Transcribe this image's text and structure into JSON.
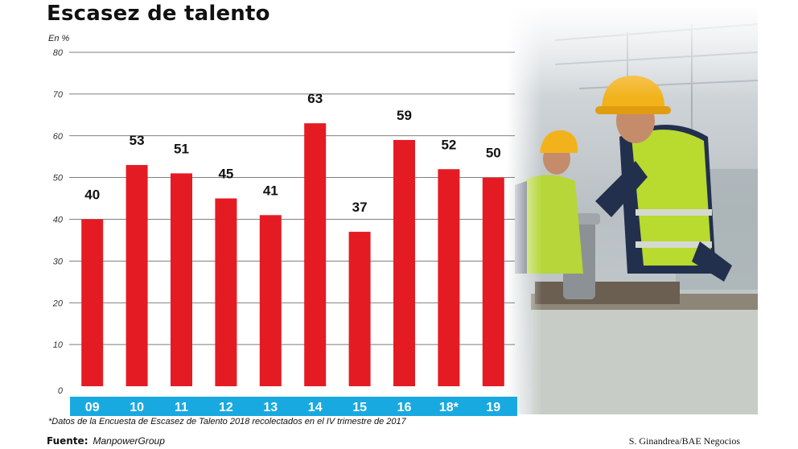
{
  "title": "Escasez de talento",
  "unit_label": "En %",
  "footnote": "*Datos de la Encuesta de Escasez de Talento 2018 recolectados en el IV trimestre de 2017",
  "source": {
    "label": "Fuente:",
    "value": "ManpowerGroup"
  },
  "credit": "S. Ginandrea/BAE Negocios",
  "colors": {
    "bar": "#e51b24",
    "axis_band": "#19a9e1",
    "axis_text": "#ffffff",
    "grid": "#555555"
  },
  "chart_data": {
    "type": "bar",
    "categories": [
      "09",
      "10",
      "11",
      "12",
      "13",
      "14",
      "15",
      "16",
      "18*",
      "19"
    ],
    "values": [
      40,
      53,
      51,
      45,
      41,
      63,
      37,
      59,
      52,
      50
    ],
    "title": "Escasez de talento",
    "ylabel": "En %",
    "ylim": [
      0,
      80
    ],
    "yticks": [
      0,
      10,
      20,
      30,
      40,
      50,
      60,
      70,
      80
    ],
    "grid": true,
    "data_labels": true
  }
}
